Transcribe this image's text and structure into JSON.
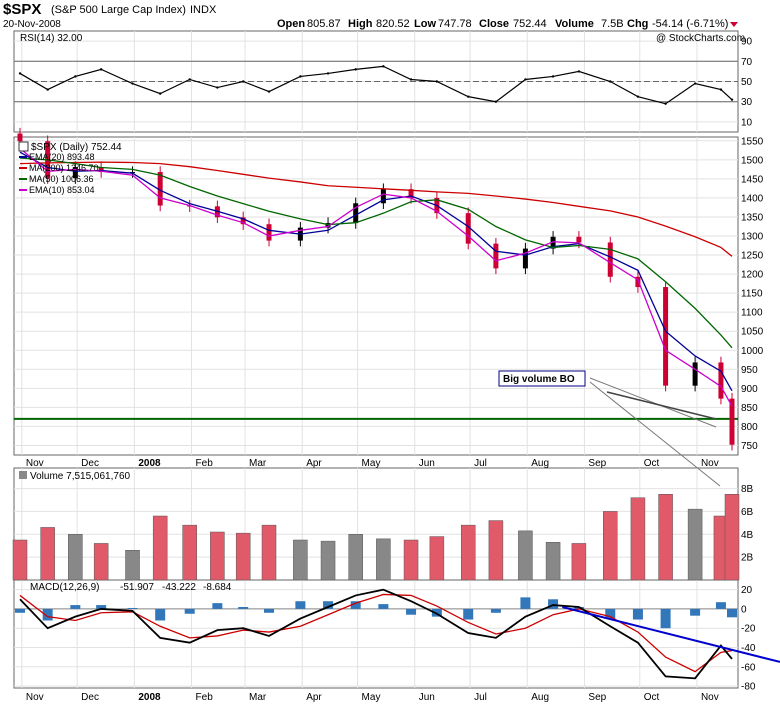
{
  "header": {
    "symbol": "$SPX",
    "name": "(S&P 500 Large Cap Index)",
    "exchange": "INDX",
    "date": "20-Nov-2008",
    "quote": {
      "open_label": "Open",
      "open": "805.87",
      "high_label": "High",
      "high": "820.52",
      "low_label": "Low",
      "low": "747.78",
      "close_label": "Close",
      "close": "752.44",
      "volume_label": "Volume",
      "volume": "7.5B",
      "chg_label": "Chg",
      "chg": "-54.14 (-6.71%)"
    },
    "watermark": "@ StockCharts.com"
  },
  "colors": {
    "candle_up": "#000000",
    "candle_down": "#cc0033",
    "ema20": "#000099",
    "ma200": "#cc0000",
    "ma50": "#006600",
    "ema10": "#cc00cc",
    "support": "#006600",
    "volume_up": "#888888",
    "volume_down": "#e05a6a",
    "macd": "#000000",
    "signal": "#cc0000",
    "histogram": "#3377bb",
    "trendline": "#0000cc",
    "annotation_border": "#000080"
  },
  "chart_data": [
    {
      "type": "line",
      "panel": "rsi",
      "legend": "RSI(14) 32.00",
      "ylim": [
        0,
        100
      ],
      "y_ticks": [
        "90",
        "70",
        "50",
        "30",
        "10"
      ],
      "guide_levels": [
        70,
        50,
        30
      ],
      "x_dates": [
        "2007-10-31",
        "2007-11-15",
        "2007-11-30",
        "2007-12-14",
        "2007-12-31",
        "2008-01-15",
        "2008-01-31",
        "2008-02-15",
        "2008-02-29",
        "2008-03-14",
        "2008-03-31",
        "2008-04-15",
        "2008-04-30",
        "2008-05-15",
        "2008-05-30",
        "2008-06-13",
        "2008-06-30",
        "2008-07-15",
        "2008-07-31",
        "2008-08-15",
        "2008-08-29",
        "2008-09-15",
        "2008-09-30",
        "2008-10-15",
        "2008-10-31",
        "2008-11-14",
        "2008-11-20"
      ],
      "values": [
        58,
        42,
        55,
        62,
        48,
        38,
        52,
        44,
        50,
        40,
        55,
        58,
        62,
        65,
        52,
        50,
        35,
        30,
        52,
        55,
        60,
        50,
        35,
        28,
        48,
        42,
        32
      ],
      "last_value": 32.0
    },
    {
      "type": "line",
      "panel": "price",
      "legend_title": "$SPX (Daily) 752.44",
      "ylim": [
        725,
        1560
      ],
      "y_ticks": [
        "1550",
        "1500",
        "1450",
        "1400",
        "1350",
        "1300",
        "1250",
        "1200",
        "1150",
        "1100",
        "1050",
        "1000",
        "950",
        "900",
        "850",
        "800",
        "750"
      ],
      "x_labels": [
        "Nov",
        "Dec",
        "2008",
        "Feb",
        "Mar",
        "Apr",
        "May",
        "Jun",
        "Jul",
        "Aug",
        "Sep",
        "Oct",
        "Nov"
      ],
      "x_dates": [
        "2007-10-31",
        "2007-11-15",
        "2007-11-30",
        "2007-12-14",
        "2007-12-31",
        "2008-01-15",
        "2008-01-31",
        "2008-02-15",
        "2008-02-29",
        "2008-03-14",
        "2008-03-31",
        "2008-04-15",
        "2008-04-30",
        "2008-05-15",
        "2008-05-30",
        "2008-06-13",
        "2008-06-30",
        "2008-07-15",
        "2008-07-31",
        "2008-08-15",
        "2008-08-29",
        "2008-09-15",
        "2008-09-30",
        "2008-10-15",
        "2008-10-31",
        "2008-11-14",
        "2008-11-20"
      ],
      "close": [
        1549,
        1452,
        1481,
        1468,
        1468,
        1380,
        1378,
        1349,
        1331,
        1288,
        1322,
        1334,
        1386,
        1423,
        1400,
        1360,
        1280,
        1215,
        1267,
        1298,
        1283,
        1193,
        1166,
        907,
        968,
        873,
        752
      ],
      "series": [
        {
          "name": "EMA(20) 893.48",
          "values": [
            1520,
            1480,
            1470,
            1472,
            1465,
            1420,
            1385,
            1365,
            1345,
            1315,
            1305,
            1315,
            1355,
            1395,
            1405,
            1380,
            1325,
            1260,
            1250,
            1272,
            1280,
            1245,
            1210,
            1050,
            985,
            945,
            893.48
          ]
        },
        {
          "name": "MA(200) 1246.70",
          "values": [
            1490,
            1492,
            1493,
            1494,
            1493,
            1490,
            1482,
            1472,
            1462,
            1452,
            1442,
            1432,
            1428,
            1424,
            1420,
            1416,
            1412,
            1405,
            1397,
            1388,
            1378,
            1366,
            1350,
            1326,
            1298,
            1270,
            1246.7
          ]
        },
        {
          "name": "MA(50) 1006.36",
          "values": [
            1505,
            1500,
            1490,
            1480,
            1475,
            1460,
            1430,
            1405,
            1385,
            1365,
            1345,
            1330,
            1335,
            1360,
            1390,
            1395,
            1370,
            1325,
            1290,
            1270,
            1275,
            1265,
            1240,
            1180,
            1110,
            1040,
            1006.36
          ]
        },
        {
          "name": "EMA(10) 853.04",
          "values": [
            1530,
            1470,
            1475,
            1470,
            1460,
            1400,
            1380,
            1355,
            1335,
            1300,
            1315,
            1325,
            1375,
            1410,
            1400,
            1365,
            1300,
            1235,
            1255,
            1285,
            1282,
            1230,
            1185,
            1000,
            950,
            905,
            853.04
          ]
        }
      ],
      "support_level": 820,
      "annotations": [
        {
          "text": "Big volume BO"
        }
      ]
    },
    {
      "type": "bar",
      "panel": "volume",
      "legend": "Volume 7,515,061,760",
      "ylim": [
        0,
        9.8
      ],
      "y_ticks": [
        "8B",
        "6B",
        "4B",
        "2B"
      ],
      "x_dates": [
        "2007-10-31",
        "2007-11-15",
        "2007-11-30",
        "2007-12-14",
        "2007-12-31",
        "2008-01-15",
        "2008-01-31",
        "2008-02-15",
        "2008-02-29",
        "2008-03-14",
        "2008-03-31",
        "2008-04-15",
        "2008-04-30",
        "2008-05-15",
        "2008-05-30",
        "2008-06-13",
        "2008-06-30",
        "2008-07-15",
        "2008-07-31",
        "2008-08-15",
        "2008-08-29",
        "2008-09-15",
        "2008-09-30",
        "2008-10-15",
        "2008-10-31",
        "2008-11-14",
        "2008-11-20"
      ],
      "values": [
        3.5,
        4.6,
        4.0,
        3.2,
        2.6,
        5.6,
        4.8,
        4.2,
        4.1,
        4.8,
        3.5,
        3.4,
        4.0,
        3.6,
        3.5,
        3.8,
        4.8,
        5.2,
        4.3,
        3.3,
        3.2,
        6.0,
        7.2,
        7.5,
        6.2,
        5.6,
        7.5
      ],
      "last_value": 7515061760
    },
    {
      "type": "line",
      "panel": "macd",
      "legend": {
        "name": "MACD(12,26,9)",
        "macd": "-51.907",
        "signal": "-43.222",
        "histogram": "-8.684"
      },
      "ylim": [
        -82,
        30
      ],
      "y_ticks": [
        "20",
        "0",
        "-20",
        "-40",
        "-60",
        "-80"
      ],
      "x_dates": [
        "2007-10-31",
        "2007-11-15",
        "2007-11-30",
        "2007-12-14",
        "2007-12-31",
        "2008-01-15",
        "2008-01-31",
        "2008-02-15",
        "2008-02-29",
        "2008-03-14",
        "2008-03-31",
        "2008-04-15",
        "2008-04-30",
        "2008-05-15",
        "2008-05-30",
        "2008-06-13",
        "2008-06-30",
        "2008-07-15",
        "2008-07-31",
        "2008-08-15",
        "2008-08-29",
        "2008-09-15",
        "2008-09-30",
        "2008-10-15",
        "2008-10-31",
        "2008-11-14",
        "2008-11-20"
      ],
      "series": [
        {
          "name": "MACD",
          "values": [
            10,
            -20,
            -8,
            0,
            -2,
            -30,
            -35,
            -22,
            -20,
            -28,
            -10,
            2,
            14,
            20,
            8,
            -5,
            -25,
            -30,
            -8,
            4,
            2,
            -18,
            -35,
            -70,
            -72,
            -38,
            -51.907
          ]
        },
        {
          "name": "Signal",
          "values": [
            14,
            -8,
            -12,
            -4,
            -3,
            -18,
            -30,
            -28,
            -22,
            -24,
            -18,
            -6,
            6,
            15,
            14,
            3,
            -14,
            -26,
            -20,
            -6,
            0,
            -8,
            -24,
            -50,
            -65,
            -45,
            -43.222
          ]
        },
        {
          "name": "Histogram",
          "values": [
            -4,
            -12,
            4,
            4,
            1,
            -12,
            -5,
            6,
            2,
            -4,
            8,
            8,
            8,
            5,
            -6,
            -8,
            -11,
            -4,
            12,
            10,
            2,
            -10,
            -11,
            -20,
            -7,
            7,
            -8.684
          ]
        }
      ]
    }
  ]
}
